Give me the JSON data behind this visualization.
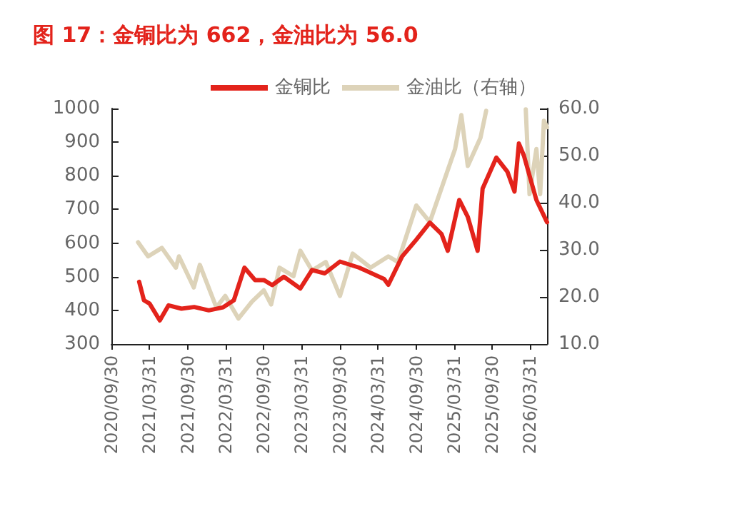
{
  "chart_data": {
    "type": "line",
    "title": "图 17：金铜比为 662，金油比为 56.0",
    "legend": "top",
    "grid": false,
    "marker": "none",
    "line_style": "solid",
    "xlim": [
      "2020-09-30",
      "2026-06-20"
    ],
    "xticks": [
      {
        "value": "2020-09-30",
        "label": "2020/09/30"
      },
      {
        "value": "2021-03-31",
        "label": "2021/03/31"
      },
      {
        "value": "2021-09-30",
        "label": "2021/09/30"
      },
      {
        "value": "2022-03-31",
        "label": "2022/03/31"
      },
      {
        "value": "2022-09-30",
        "label": "2022/09/30"
      },
      {
        "value": "2023-03-31",
        "label": "2023/03/31"
      },
      {
        "value": "2023-09-30",
        "label": "2023/09/30"
      },
      {
        "value": "2024-03-31",
        "label": "2024/03/31"
      },
      {
        "value": "2024-09-30",
        "label": "2024/09/30"
      },
      {
        "value": "2025-03-31",
        "label": "2025/03/31"
      },
      {
        "value": "2025-09-30",
        "label": "2025/09/30"
      },
      {
        "value": "2026-03-31",
        "label": "2026/03/31"
      }
    ],
    "ylim": [
      300,
      1000
    ],
    "yticks": [
      300,
      400,
      500,
      600,
      700,
      800,
      900,
      1000
    ],
    "y2lim": [
      10,
      60
    ],
    "y2ticks": [
      {
        "value": 10,
        "label": "10.0"
      },
      {
        "value": 20,
        "label": "20.0"
      },
      {
        "value": 30,
        "label": "30.0"
      },
      {
        "value": 40,
        "label": "40.0"
      },
      {
        "value": 50,
        "label": "50.0"
      },
      {
        "value": 60,
        "label": "60.0"
      }
    ],
    "series": [
      {
        "name": "金铜比",
        "color": "#e3231b",
        "x": [
          "2021-02-10",
          "2021-03-05",
          "2021-04-01",
          "2021-05-20",
          "2021-07-01",
          "2021-09-01",
          "2021-11-01",
          "2022-01-10",
          "2022-03-20",
          "2022-05-10",
          "2022-06-30",
          "2022-08-20",
          "2022-10-01",
          "2022-11-10",
          "2023-01-05",
          "2023-03-25",
          "2023-05-20",
          "2023-07-20",
          "2023-10-01",
          "2024-01-01",
          "2024-04-30",
          "2024-05-20",
          "2024-07-25",
          "2024-10-01",
          "2024-12-05",
          "2025-01-30",
          "2025-03-01",
          "2025-04-25",
          "2025-06-05",
          "2025-07-22",
          "2025-08-15",
          "2025-10-20",
          "2025-12-12",
          "2026-01-15",
          "2026-02-05",
          "2026-03-01",
          "2026-04-30",
          "2026-06-20"
        ],
        "values": [
          485,
          430,
          420,
          370,
          415,
          405,
          410,
          400,
          409,
          430,
          527,
          490,
          490,
          475,
          500,
          465,
          520,
          510,
          545,
          527,
          493,
          476,
          560,
          610,
          661,
          627,
          577,
          728,
          678,
          577,
          762,
          854,
          812,
          753,
          896,
          860,
          728,
          662
        ]
      },
      {
        "name": "金油比（右轴）",
        "color": "#ddd3b9",
        "axis": "y2",
        "x": [
          "2021-02-05",
          "2021-03-25",
          "2021-05-30",
          "2021-08-05",
          "2021-08-20",
          "2021-10-30",
          "2021-11-28",
          "2022-02-15",
          "2022-03-30",
          "2022-06-01",
          "2022-08-05",
          "2022-10-01",
          "2022-11-05",
          "2022-12-15",
          "2023-02-20",
          "2023-03-25",
          "2023-05-20",
          "2023-07-25",
          "2023-10-01",
          "2023-12-01",
          "2024-02-25",
          "2024-05-20",
          "2024-07-05",
          "2024-10-01",
          "2024-12-05",
          "2025-04-05",
          "2025-05-05",
          "2025-06-05",
          "2025-08-05",
          "2025-09-01",
          "2025-09-20",
          "2026-03-10",
          "2026-03-28",
          "2026-04-30",
          "2026-05-18",
          "2026-06-05",
          "2026-06-20"
        ],
        "values": [
          31.6,
          28.6,
          30.4,
          26.2,
          28.6,
          22.0,
          26.8,
          17.8,
          20.2,
          15.4,
          19.0,
          21.4,
          18.4,
          26.2,
          24.4,
          29.8,
          25.6,
          27.4,
          20.2,
          29.2,
          26.2,
          28.6,
          27.4,
          39.4,
          35.9,
          51.4,
          58.6,
          47.8,
          53.8,
          59.5,
          null,
          59.8,
          41.8,
          51.4,
          41.8,
          57.4,
          56.0
        ]
      }
    ]
  }
}
